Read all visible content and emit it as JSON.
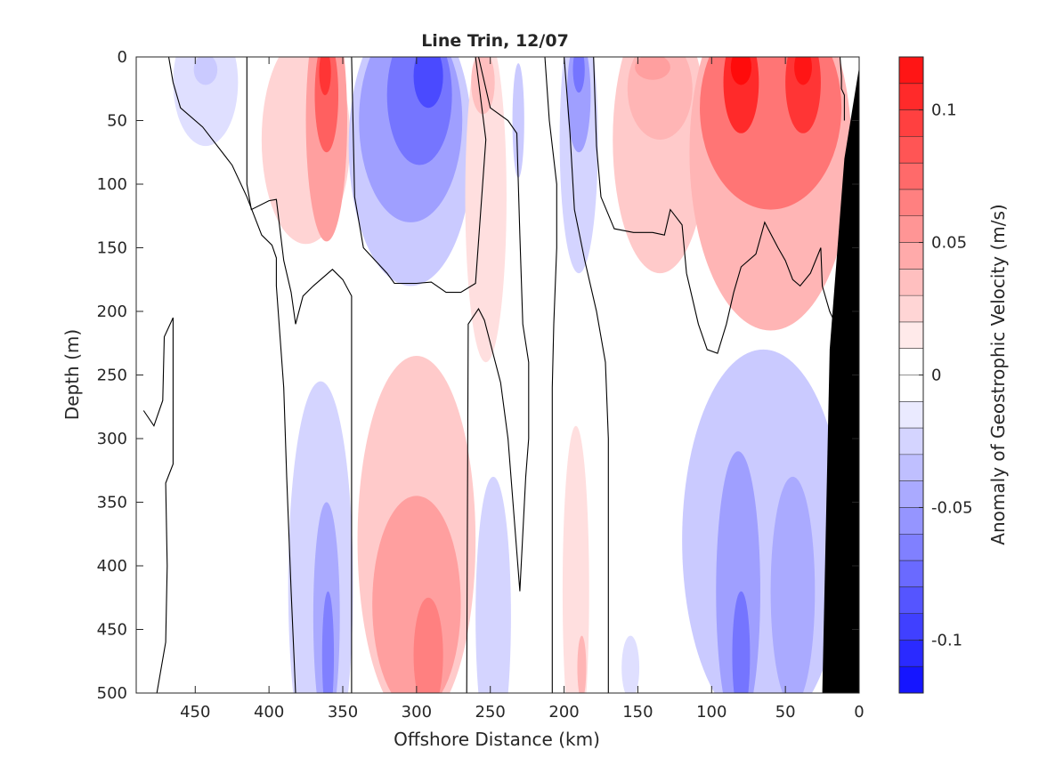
{
  "chart_data": {
    "type": "heatmap",
    "subtype": "filled-contour",
    "title": "Line Trin, 12/07",
    "xlabel": "Offshore Distance (km)",
    "ylabel": "Depth (m)",
    "colorbar_label": "Anomaly of Geostrophic Velocity (m/s)",
    "xlim": [
      490,
      0
    ],
    "x_reversed": true,
    "ylim": [
      0,
      500
    ],
    "y_reversed": true,
    "x_ticks": [
      450,
      400,
      350,
      300,
      250,
      200,
      150,
      100,
      50,
      0
    ],
    "y_ticks": [
      0,
      50,
      100,
      150,
      200,
      250,
      300,
      350,
      400,
      450,
      500
    ],
    "colorbar": {
      "range": [
        -0.12,
        0.12
      ],
      "step": 0.01,
      "ticks": [
        0.1,
        0.05,
        0,
        -0.05,
        -0.1
      ],
      "tick_labels": [
        "0.1",
        "0.05",
        "0",
        "-0.05",
        "-0.1"
      ],
      "negative_color": "#0000ff",
      "zero_color": "#ffffff",
      "positive_color": "#ff0000"
    },
    "bathymetry": {
      "color": "#000000",
      "points": [
        [
          0,
          8
        ],
        [
          10,
          80
        ],
        [
          20,
          230
        ],
        [
          25,
          500
        ],
        [
          0,
          500
        ]
      ]
    },
    "cells": [
      {
        "x": 443,
        "y": 20,
        "rx": 22,
        "ry": 50,
        "v": -0.015
      },
      {
        "x": 443,
        "y": 10,
        "rx": 8,
        "ry": 12,
        "v": -0.025
      },
      {
        "x": 375,
        "y": 65,
        "rx": 30,
        "ry": 82,
        "v": 0.02
      },
      {
        "x": 361,
        "y": 50,
        "rx": 14,
        "ry": 95,
        "v": 0.045
      },
      {
        "x": 361,
        "y": 30,
        "rx": 8,
        "ry": 45,
        "v": 0.075
      },
      {
        "x": 362,
        "y": 12,
        "rx": 4,
        "ry": 18,
        "v": 0.095
      },
      {
        "x": 304,
        "y": 70,
        "rx": 42,
        "ry": 110,
        "v": -0.025
      },
      {
        "x": 304,
        "y": 50,
        "rx": 35,
        "ry": 80,
        "v": -0.045
      },
      {
        "x": 298,
        "y": 30,
        "rx": 22,
        "ry": 55,
        "v": -0.065
      },
      {
        "x": 292,
        "y": 15,
        "rx": 10,
        "ry": 25,
        "v": -0.085
      },
      {
        "x": 253,
        "y": 110,
        "rx": 14,
        "ry": 130,
        "v": 0.015
      },
      {
        "x": 255,
        "y": 20,
        "rx": 8,
        "ry": 25,
        "v": 0.03
      },
      {
        "x": 231,
        "y": 50,
        "rx": 4,
        "ry": 45,
        "v": -0.025
      },
      {
        "x": 190,
        "y": 65,
        "rx": 13,
        "ry": 105,
        "v": -0.02
      },
      {
        "x": 190,
        "y": 30,
        "rx": 8,
        "ry": 45,
        "v": -0.045
      },
      {
        "x": 190,
        "y": 10,
        "rx": 4,
        "ry": 18,
        "v": -0.065
      },
      {
        "x": 135,
        "y": 65,
        "rx": 32,
        "ry": 105,
        "v": 0.025
      },
      {
        "x": 135,
        "y": 25,
        "rx": 22,
        "ry": 40,
        "v": 0.035
      },
      {
        "x": 140,
        "y": 8,
        "rx": 12,
        "ry": 10,
        "v": 0.045
      },
      {
        "x": 60,
        "y": 75,
        "rx": 55,
        "ry": 140,
        "v": 0.035
      },
      {
        "x": 60,
        "y": 40,
        "rx": 48,
        "ry": 80,
        "v": 0.065
      },
      {
        "x": 80,
        "y": 20,
        "rx": 12,
        "ry": 40,
        "v": 0.1
      },
      {
        "x": 80,
        "y": 8,
        "rx": 7,
        "ry": 14,
        "v": 0.115
      },
      {
        "x": 38,
        "y": 20,
        "rx": 12,
        "ry": 40,
        "v": 0.095
      },
      {
        "x": 38,
        "y": 8,
        "rx": 6,
        "ry": 14,
        "v": 0.11
      },
      {
        "x": 365,
        "y": 415,
        "rx": 22,
        "ry": 160,
        "v": -0.02
      },
      {
        "x": 361,
        "y": 440,
        "rx": 9,
        "ry": 90,
        "v": -0.04
      },
      {
        "x": 360,
        "y": 470,
        "rx": 4,
        "ry": 50,
        "v": -0.06
      },
      {
        "x": 300,
        "y": 380,
        "rx": 40,
        "ry": 145,
        "v": 0.025
      },
      {
        "x": 300,
        "y": 430,
        "rx": 30,
        "ry": 85,
        "v": 0.045
      },
      {
        "x": 292,
        "y": 470,
        "rx": 10,
        "ry": 45,
        "v": 0.06
      },
      {
        "x": 248,
        "y": 440,
        "rx": 12,
        "ry": 110,
        "v": -0.02
      },
      {
        "x": 192,
        "y": 420,
        "rx": 9,
        "ry": 130,
        "v": 0.015
      },
      {
        "x": 188,
        "y": 480,
        "rx": 3,
        "ry": 25,
        "v": 0.035
      },
      {
        "x": 155,
        "y": 480,
        "rx": 6,
        "ry": 25,
        "v": -0.015
      },
      {
        "x": 65,
        "y": 380,
        "rx": 55,
        "ry": 150,
        "v": -0.025
      },
      {
        "x": 82,
        "y": 420,
        "rx": 15,
        "ry": 110,
        "v": -0.045
      },
      {
        "x": 80,
        "y": 470,
        "rx": 6,
        "ry": 50,
        "v": -0.065
      },
      {
        "x": 45,
        "y": 420,
        "rx": 15,
        "ry": 90,
        "v": -0.04
      }
    ],
    "zero_contours": [
      [
        [
          468,
          0
        ],
        [
          465,
          20
        ],
        [
          460,
          40
        ],
        [
          445,
          55
        ],
        [
          425,
          85
        ],
        [
          415,
          110
        ],
        [
          405,
          140
        ],
        [
          398,
          148
        ],
        [
          395,
          158
        ],
        [
          395,
          180
        ],
        [
          390,
          260
        ],
        [
          388,
          330
        ],
        [
          385,
          420
        ],
        [
          382,
          500
        ]
      ],
      [
        [
          485,
          278
        ],
        [
          478,
          290
        ],
        [
          472,
          270
        ],
        [
          471,
          220
        ],
        [
          465,
          205
        ],
        [
          465,
          320
        ],
        [
          470,
          335
        ],
        [
          469,
          400
        ],
        [
          470,
          460
        ],
        [
          476,
          500
        ]
      ],
      [
        [
          415,
          0
        ],
        [
          415,
          100
        ],
        [
          412,
          120
        ],
        [
          400,
          113
        ],
        [
          395,
          112
        ],
        [
          390,
          160
        ],
        [
          385,
          185
        ],
        [
          382,
          210
        ],
        [
          377,
          188
        ],
        [
          370,
          180
        ],
        [
          357,
          167
        ],
        [
          350,
          175
        ],
        [
          344,
          188
        ],
        [
          344,
          500
        ]
      ],
      [
        [
          344,
          0
        ],
        [
          342,
          110
        ],
        [
          336,
          150
        ],
        [
          320,
          170
        ],
        [
          315,
          178
        ],
        [
          300,
          178
        ],
        [
          290,
          177
        ],
        [
          280,
          185
        ],
        [
          270,
          185
        ],
        [
          260,
          178
        ],
        [
          253,
          65
        ],
        [
          260,
          0
        ]
      ],
      [
        [
          258,
          0
        ],
        [
          250,
          40
        ],
        [
          238,
          50
        ],
        [
          232,
          60
        ],
        [
          230,
          140
        ],
        [
          228,
          210
        ],
        [
          224,
          240
        ],
        [
          224,
          300
        ],
        [
          226,
          330
        ],
        [
          230,
          420
        ],
        [
          238,
          300
        ],
        [
          243,
          256
        ],
        [
          254,
          207
        ],
        [
          258,
          198
        ],
        [
          265,
          210
        ],
        [
          266,
          500
        ]
      ],
      [
        [
          213,
          0
        ],
        [
          210,
          50
        ],
        [
          205,
          100
        ],
        [
          205,
          150
        ],
        [
          207,
          210
        ],
        [
          208,
          260
        ],
        [
          208,
          500
        ]
      ],
      [
        [
          200,
          0
        ],
        [
          196,
          60
        ],
        [
          193,
          120
        ],
        [
          186,
          160
        ],
        [
          178,
          200
        ],
        [
          172,
          240
        ],
        [
          170,
          300
        ],
        [
          170,
          500
        ]
      ],
      [
        [
          180,
          0
        ],
        [
          178,
          70
        ],
        [
          175,
          110
        ],
        [
          166,
          135
        ],
        [
          153,
          138
        ],
        [
          140,
          138
        ],
        [
          132,
          140
        ],
        [
          128,
          120
        ],
        [
          120,
          132
        ],
        [
          117,
          170
        ],
        [
          109,
          210
        ],
        [
          103,
          230
        ],
        [
          96,
          233
        ],
        [
          90,
          210
        ],
        [
          85,
          185
        ],
        [
          80,
          165
        ],
        [
          70,
          155
        ],
        [
          64,
          130
        ],
        [
          55,
          150
        ],
        [
          50,
          160
        ],
        [
          45,
          175
        ],
        [
          40,
          180
        ],
        [
          33,
          170
        ],
        [
          26,
          150
        ],
        [
          25,
          180
        ],
        [
          20,
          200
        ],
        [
          16,
          210
        ],
        [
          12,
          220
        ]
      ],
      [
        [
          13,
          0
        ],
        [
          12,
          15
        ],
        [
          12,
          25
        ],
        [
          10,
          30
        ],
        [
          10,
          50
        ]
      ]
    ]
  }
}
